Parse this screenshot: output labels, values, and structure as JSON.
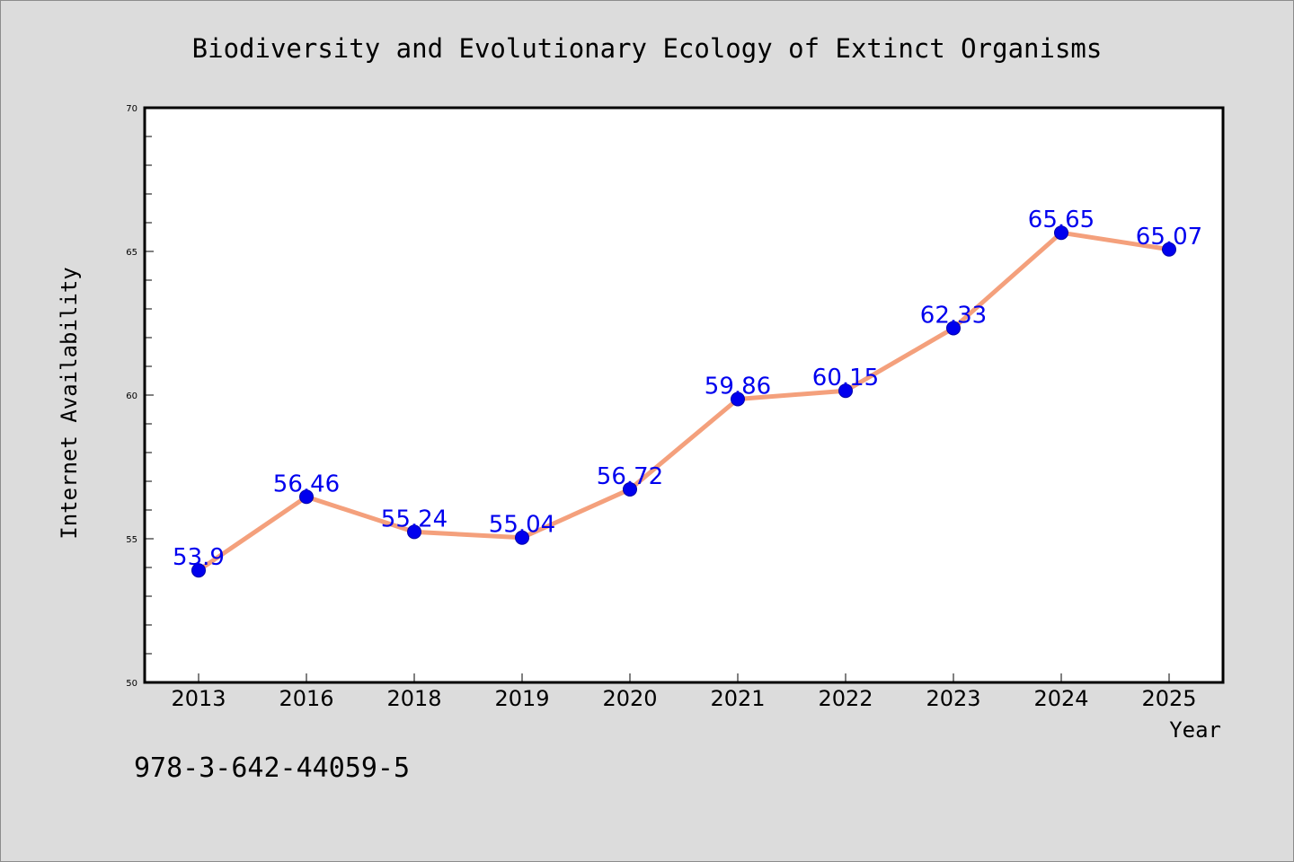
{
  "chart_data": {
    "type": "line",
    "title": "Biodiversity and Evolutionary Ecology of Extinct Organisms",
    "xlabel": "Year",
    "ylabel": "Internet Availability",
    "categories": [
      "2013",
      "2016",
      "2018",
      "2019",
      "2020",
      "2021",
      "2022",
      "2023",
      "2024",
      "2025"
    ],
    "series": [
      {
        "values": [
          53.9,
          56.46,
          55.24,
          55.04,
          56.72,
          59.86,
          60.15,
          62.33,
          65.65,
          65.07
        ],
        "labels": [
          "53.9",
          "56.46",
          "55.24",
          "55.04",
          "56.72",
          "59.86",
          "60.15",
          "62.33",
          "65.65",
          "65.07"
        ]
      }
    ],
    "ylim": [
      50,
      70
    ],
    "yticks": [
      "50",
      "55",
      "60",
      "65",
      "70"
    ],
    "grid": false,
    "line_color": "#f4a07c",
    "marker_color": "#0000ee",
    "label_color": "#0000ee",
    "plot_background": "#ffffff",
    "background": "#dcdcdc"
  },
  "annotation": "978-3-642-44059-5"
}
